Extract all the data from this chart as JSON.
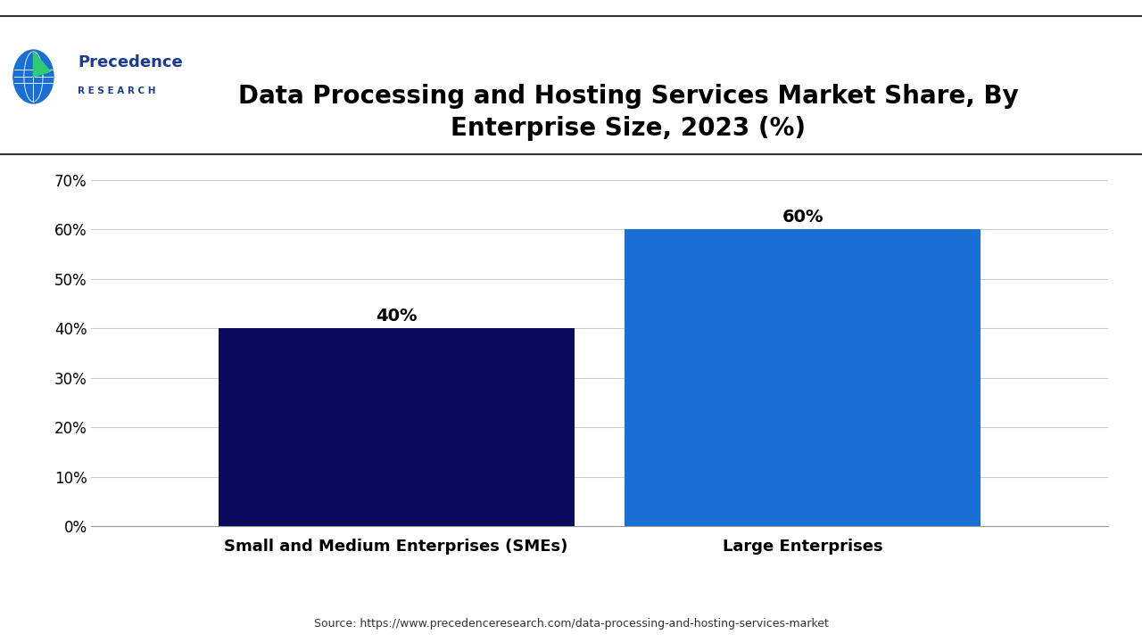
{
  "title": "Data Processing and Hosting Services Market Share, By\nEnterprise Size, 2023 (%)",
  "categories": [
    "Small and Medium Enterprises (SMEs)",
    "Large Enterprises"
  ],
  "values": [
    40,
    60
  ],
  "bar_colors": [
    "#0a0a5e",
    "#1a6fd4"
  ],
  "value_labels": [
    "40%",
    "60%"
  ],
  "ylim": [
    0,
    70
  ],
  "yticks": [
    0,
    10,
    20,
    30,
    40,
    50,
    60,
    70
  ],
  "ytick_labels": [
    "0%",
    "10%",
    "20%",
    "30%",
    "40%",
    "50%",
    "60%",
    "70%"
  ],
  "source_text": "Source: https://www.precedenceresearch.com/data-processing-and-hosting-services-market",
  "background_color": "#ffffff",
  "grid_color": "#cccccc",
  "title_fontsize": 20,
  "label_fontsize": 13,
  "value_fontsize": 14,
  "bar_width": 0.35,
  "logo_text1": "Precedence",
  "logo_text2": "R E S E A R C H",
  "logo_color": "#1a3c8f"
}
